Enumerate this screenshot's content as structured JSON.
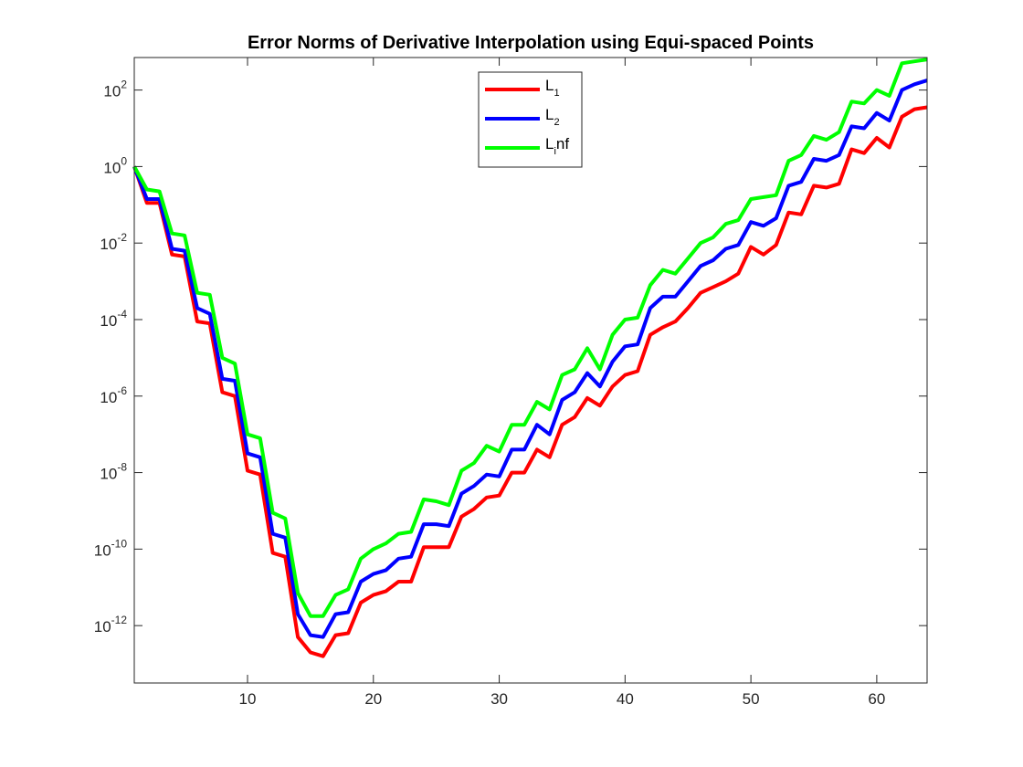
{
  "chart_data": {
    "type": "line",
    "title": "Error Norms of Derivative Interpolation using Equi-spaced Points",
    "xlabel": "",
    "ylabel": "",
    "xlim": [
      1,
      64
    ],
    "ylim_log10": [
      -13.5,
      2.85
    ],
    "yscale": "log",
    "grid": false,
    "legend_position": "top-center",
    "x_ticks": [
      10,
      20,
      30,
      40,
      50,
      60
    ],
    "y_ticks": [
      {
        "base": "10",
        "exp": "2",
        "log": 2
      },
      {
        "base": "10",
        "exp": "0",
        "log": 0
      },
      {
        "base": "10",
        "exp": "-2",
        "log": -2
      },
      {
        "base": "10",
        "exp": "-4",
        "log": -4
      },
      {
        "base": "10",
        "exp": "-6",
        "log": -6
      },
      {
        "base": "10",
        "exp": "-8",
        "log": -8
      },
      {
        "base": "10",
        "exp": "-10",
        "log": -10
      },
      {
        "base": "10",
        "exp": "-12",
        "log": -12
      }
    ],
    "x": [
      1,
      2,
      3,
      4,
      5,
      6,
      7,
      8,
      9,
      10,
      11,
      12,
      13,
      14,
      15,
      16,
      17,
      18,
      19,
      20,
      21,
      22,
      23,
      24,
      25,
      26,
      27,
      28,
      29,
      30,
      31,
      32,
      33,
      34,
      35,
      36,
      37,
      38,
      39,
      40,
      41,
      42,
      43,
      44,
      45,
      46,
      47,
      48,
      49,
      50,
      51,
      52,
      53,
      54,
      55,
      56,
      57,
      58,
      59,
      60,
      61,
      62,
      63,
      64
    ],
    "series": [
      {
        "name_main": "L",
        "name_sub": "1",
        "name_tail": "",
        "color": "#ff0000",
        "log10_values": [
          0.0,
          -0.95,
          -0.95,
          -2.3,
          -2.35,
          -4.05,
          -4.1,
          -5.9,
          -6.0,
          -7.95,
          -8.05,
          -10.1,
          -10.2,
          -12.3,
          -12.7,
          -12.8,
          -12.25,
          -12.2,
          -11.4,
          -11.2,
          -11.1,
          -10.85,
          -10.85,
          -9.95,
          -9.95,
          -9.95,
          -9.15,
          -8.95,
          -8.65,
          -8.6,
          -8.0,
          -8.0,
          -7.4,
          -7.6,
          -6.75,
          -6.55,
          -6.05,
          -6.25,
          -5.75,
          -5.45,
          -5.35,
          -4.4,
          -4.2,
          -4.05,
          -3.7,
          -3.3,
          -3.15,
          -3.0,
          -2.8,
          -2.1,
          -2.3,
          -2.05,
          -1.2,
          -1.25,
          -0.5,
          -0.55,
          -0.45,
          0.45,
          0.35,
          0.75,
          0.5,
          1.3,
          1.5,
          1.55
        ]
      },
      {
        "name_main": "L",
        "name_sub": "2",
        "name_tail": "",
        "color": "#0000ff",
        "log10_values": [
          0.0,
          -0.85,
          -0.85,
          -2.15,
          -2.2,
          -3.7,
          -3.85,
          -5.55,
          -5.6,
          -7.5,
          -7.6,
          -9.6,
          -9.7,
          -11.7,
          -12.25,
          -12.3,
          -11.7,
          -11.65,
          -10.85,
          -10.65,
          -10.55,
          -10.25,
          -10.2,
          -9.35,
          -9.35,
          -9.4,
          -8.55,
          -8.35,
          -8.05,
          -8.1,
          -7.4,
          -7.4,
          -6.75,
          -7.0,
          -6.1,
          -5.9,
          -5.4,
          -5.75,
          -5.1,
          -4.7,
          -4.65,
          -3.7,
          -3.4,
          -3.4,
          -3.0,
          -2.6,
          -2.45,
          -2.15,
          -2.05,
          -1.45,
          -1.55,
          -1.35,
          -0.5,
          -0.4,
          0.2,
          0.15,
          0.3,
          1.05,
          1.0,
          1.4,
          1.2,
          2.0,
          2.15,
          2.25
        ]
      },
      {
        "name_main": "L",
        "name_sub": "i",
        "name_tail": "nf",
        "color": "#00ff00",
        "log10_values": [
          0.0,
          -0.6,
          -0.65,
          -1.75,
          -1.8,
          -3.3,
          -3.35,
          -5.0,
          -5.15,
          -7.0,
          -7.1,
          -9.05,
          -9.2,
          -11.15,
          -11.75,
          -11.75,
          -11.2,
          -11.05,
          -10.25,
          -10.0,
          -9.85,
          -9.6,
          -9.55,
          -8.7,
          -8.75,
          -8.85,
          -7.95,
          -7.75,
          -7.3,
          -7.45,
          -6.75,
          -6.75,
          -6.15,
          -6.35,
          -5.45,
          -5.3,
          -4.75,
          -5.3,
          -4.4,
          -4.0,
          -3.95,
          -3.1,
          -2.7,
          -2.8,
          -2.4,
          -2.0,
          -1.85,
          -1.5,
          -1.4,
          -0.85,
          -0.8,
          -0.75,
          0.15,
          0.3,
          0.8,
          0.7,
          0.9,
          1.7,
          1.65,
          2.0,
          1.85,
          2.7,
          2.75,
          2.8
        ]
      }
    ]
  }
}
